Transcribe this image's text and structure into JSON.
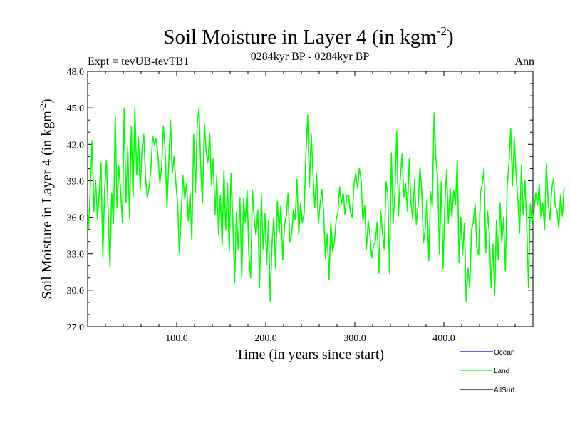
{
  "chart_data": {
    "type": "line",
    "title": "Soil Moisture in Layer 4 (in kgm",
    "title_sup": "-2",
    "title_close": ")",
    "subtitle_left": "Expt = tevUB-tevTB1",
    "subtitle_center": "0284kyr BP - 0284kyr BP",
    "subtitle_right": "Ann",
    "xlabel": "Time (in years since start)",
    "ylabel": "Soil Moisture in Layer 4 (in kgm",
    "ylabel_sup": "-2",
    "ylabel_close": ")",
    "xlim": [
      0,
      500
    ],
    "ylim": [
      27.0,
      48.0
    ],
    "xticks": [
      100,
      200,
      300,
      400
    ],
    "xtick_labels": [
      "100.0",
      "200.0",
      "300.0",
      "400.0"
    ],
    "yticks": [
      27,
      30,
      33,
      36,
      39,
      42,
      45,
      48
    ],
    "ytick_labels": [
      "27.0",
      "30.0",
      "33.0",
      "36.0",
      "39.0",
      "42.0",
      "45.0",
      "48.0"
    ],
    "grid": false,
    "legend_position": "bottom-right",
    "series": [
      {
        "name": "Ocean",
        "color": "#0000ff",
        "values": []
      },
      {
        "name": "Land",
        "color": "#00ff00",
        "x_start": 1,
        "x_step": 2,
        "values": [
          35.0,
          38.5,
          42.3,
          36.5,
          39.0,
          35.8,
          38.0,
          40.5,
          32.7,
          38.2,
          40.7,
          36.5,
          31.9,
          38.0,
          35.5,
          44.3,
          36.8,
          40.2,
          38.2,
          35.6,
          44.9,
          37.2,
          41.8,
          35.9,
          43.5,
          37.6,
          45.0,
          39.5,
          42.6,
          38.3,
          41.5,
          42.8,
          39.2,
          37.6,
          38.5,
          40.0,
          42.7,
          41.9,
          42.5,
          41.0,
          38.8,
          40.1,
          43.5,
          41.6,
          36.8,
          40.3,
          44.0,
          39.6,
          41.0,
          38.9,
          37.0,
          33.0,
          36.3,
          39.4,
          37.5,
          38.8,
          35.7,
          38.0,
          34.1,
          42.8,
          38.0,
          43.6,
          45.0,
          40.0,
          37.2,
          43.7,
          41.4,
          40.5,
          42.9,
          38.6,
          40.8,
          36.2,
          39.4,
          34.6,
          37.8,
          33.7,
          39.8,
          35.0,
          38.8,
          33.2,
          39.6,
          35.7,
          30.6,
          36.4,
          33.3,
          37.6,
          31.0,
          37.5,
          35.6,
          38.2,
          32.9,
          31.0,
          38.2,
          35.9,
          34.5,
          36.6,
          30.2,
          37.9,
          33.4,
          36.3,
          32.1,
          35.7,
          29.1,
          33.9,
          36.0,
          31.8,
          37.3,
          34.7,
          37.0,
          32.5,
          35.4,
          36.1,
          38.0,
          34.0,
          34.6,
          36.6,
          35.8,
          39.1,
          34.6,
          37.2,
          35.6,
          36.3,
          41.1,
          44.4,
          38.5,
          42.9,
          39.5,
          36.8,
          39.6,
          35.5,
          37.1,
          38.3,
          36.3,
          32.6,
          34.6,
          30.9,
          35.6,
          33.2,
          33.9,
          35.8,
          36.4,
          38.5,
          37.1,
          38.0,
          36.2,
          37.8,
          37.8,
          36.4,
          36.0,
          38.7,
          39.6,
          38.4,
          40.0,
          39.1,
          35.7,
          37.0,
          33.4,
          35.7,
          34.5,
          32.7,
          33.7,
          34.0,
          35.6,
          31.4,
          36.5,
          34.7,
          33.4,
          38.9,
          37.9,
          31.4,
          41.3,
          35.5,
          38.2,
          43.1,
          36.1,
          39.2,
          41.2,
          37.7,
          38.8,
          36.5,
          40.8,
          37.2,
          35.8,
          39.1,
          35.4,
          36.9,
          40.1,
          38.4,
          33.9,
          35.0,
          37.5,
          32.4,
          38.1,
          36.9,
          44.6,
          40.8,
          39.2,
          33.0,
          38.9,
          31.8,
          37.0,
          39.9,
          35.5,
          38.4,
          36.0,
          38.2,
          37.0,
          40.7,
          32.3,
          36.0,
          33.0,
          35.5,
          29.1,
          31.8,
          30.2,
          35.0,
          35.6,
          37.1,
          33.5,
          32.9,
          38.0,
          38.7,
          40.0,
          33.1,
          36.5,
          34.6,
          30.2,
          33.8,
          29.6,
          35.7,
          32.5,
          37.2,
          33.9,
          36.0,
          31.6,
          38.5,
          40.4,
          43.3,
          38.6,
          42.6,
          39.5,
          37.5,
          34.7,
          40.3,
          36.2,
          39.0,
          35.3,
          30.2,
          37.1,
          35.6,
          36.4,
          38.0,
          37.0,
          38.7,
          35.9,
          37.2,
          35.0,
          40.5,
          37.3,
          35.8,
          38.3,
          39.2,
          37.0,
          36.5,
          35.1,
          37.8,
          36.1,
          38.5
        ]
      },
      {
        "name": "AllSurf",
        "color": "#000000",
        "values": []
      }
    ]
  }
}
